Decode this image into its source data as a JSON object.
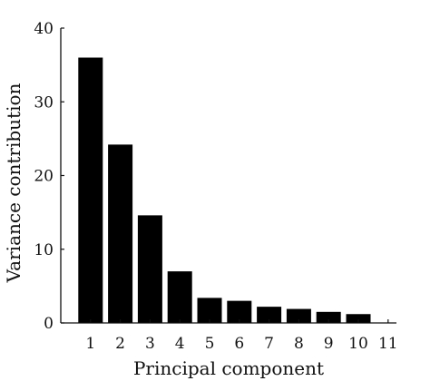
{
  "chart_data": {
    "type": "bar",
    "categories": [
      "1",
      "2",
      "3",
      "4",
      "5",
      "6",
      "7",
      "8",
      "9",
      "10"
    ],
    "values": [
      36.0,
      24.2,
      14.6,
      7.0,
      3.4,
      3.0,
      2.2,
      1.9,
      1.5,
      1.2
    ],
    "x_ticks": [
      "1",
      "2",
      "3",
      "4",
      "5",
      "6",
      "7",
      "8",
      "9",
      "10",
      "11"
    ],
    "y_ticks": [
      "0",
      "10",
      "20",
      "30",
      "40"
    ],
    "xlabel": "Principal component",
    "ylabel": "Variance contribution",
    "ylim": [
      0,
      40
    ],
    "xlim": [
      0,
      11
    ],
    "grid": false,
    "bar_color": "#000000",
    "axis_color": "#111111"
  }
}
